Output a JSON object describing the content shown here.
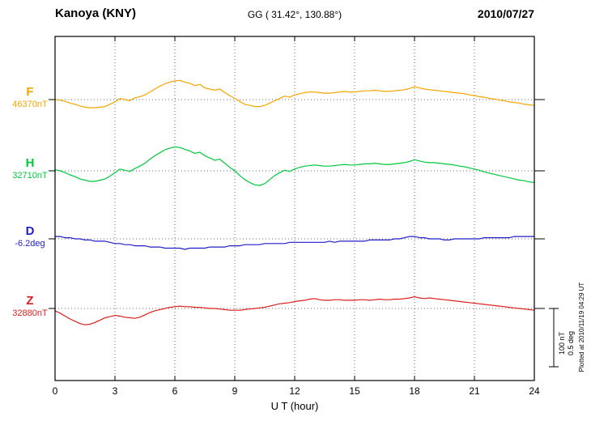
{
  "header": {
    "station": "Kanoya (KNY)",
    "coords": "GG ( 31.42°, 130.88°)",
    "date": "2010/07/27"
  },
  "footer_note": "Plotted at 2010/11/19 04:29 UT",
  "chart_data": {
    "type": "line",
    "title": "Kanoya (KNY) magnetogram 2010/07/27",
    "xlabel": "U T (hour)",
    "x_range": [
      0,
      24
    ],
    "x_ticks": [
      0,
      3,
      6,
      9,
      12,
      15,
      18,
      21,
      24
    ],
    "grid": "dotted vertical at 3h intervals, dotted horizontal baselines per trace",
    "sample_interval_hours": 0.25,
    "scale_bar": {
      "nT_label": "100 nT",
      "deg_label": "0.5 deg",
      "nT": 100,
      "deg": 0.5
    },
    "series": [
      {
        "name": "F",
        "baseline_label": "46370nT",
        "baseline_value": 46370,
        "unit": "nT",
        "color": "#F5A500",
        "values": [
          0,
          -1,
          -3,
          -6,
          -8,
          -11,
          -13,
          -14,
          -14,
          -13,
          -12,
          -8,
          -4,
          2,
          0,
          -2,
          3,
          5,
          8,
          13,
          18,
          23,
          27,
          30,
          32,
          33,
          30,
          28,
          24,
          26,
          20,
          18,
          16,
          18,
          12,
          7,
          2,
          -3,
          -8,
          -10,
          -12,
          -12,
          -10,
          -6,
          -2,
          2,
          6,
          4,
          8,
          10,
          12,
          13,
          13,
          12,
          11,
          11,
          12,
          13,
          14,
          13,
          13,
          14,
          15,
          15,
          16,
          15,
          14,
          14,
          15,
          16,
          17,
          19,
          22,
          20,
          18,
          17,
          16,
          15,
          14,
          13,
          12,
          11,
          10,
          8,
          7,
          5,
          4,
          2,
          1,
          -1,
          -2,
          -4,
          -5,
          -6,
          -8,
          -9,
          -10
        ]
      },
      {
        "name": "H",
        "baseline_label": "32710nT",
        "baseline_value": 32710,
        "unit": "nT",
        "color": "#00C83C",
        "values": [
          2,
          0,
          -3,
          -7,
          -10,
          -14,
          -16,
          -18,
          -18,
          -16,
          -14,
          -9,
          -3,
          3,
          1,
          -1,
          4,
          8,
          13,
          20,
          26,
          31,
          36,
          39,
          41,
          40,
          37,
          34,
          30,
          32,
          26,
          22,
          18,
          20,
          13,
          6,
          0,
          -8,
          -15,
          -20,
          -24,
          -25,
          -22,
          -15,
          -8,
          -3,
          1,
          -1,
          3,
          6,
          8,
          9,
          10,
          9,
          8,
          8,
          9,
          10,
          11,
          10,
          10,
          11,
          12,
          12,
          13,
          12,
          11,
          11,
          12,
          13,
          14,
          16,
          19,
          17,
          15,
          14,
          14,
          13,
          12,
          11,
          10,
          8,
          7,
          5,
          3,
          1,
          -2,
          -4,
          -6,
          -8,
          -10,
          -12,
          -14,
          -16,
          -17,
          -19,
          -20
        ]
      },
      {
        "name": "D",
        "baseline_label": "-6.2deg",
        "baseline_value": -6.2,
        "unit": "deg",
        "color": "#1E1EC8",
        "values": [
          0.02,
          0.02,
          0.01,
          0.01,
          0,
          0,
          -0.01,
          -0.01,
          -0.02,
          -0.02,
          -0.02,
          -0.03,
          -0.04,
          -0.04,
          -0.05,
          -0.05,
          -0.06,
          -0.06,
          -0.06,
          -0.07,
          -0.07,
          -0.07,
          -0.08,
          -0.08,
          -0.08,
          -0.08,
          -0.09,
          -0.08,
          -0.08,
          -0.08,
          -0.08,
          -0.07,
          -0.07,
          -0.07,
          -0.07,
          -0.06,
          -0.06,
          -0.06,
          -0.05,
          -0.05,
          -0.05,
          -0.05,
          -0.04,
          -0.04,
          -0.04,
          -0.04,
          -0.04,
          -0.03,
          -0.03,
          -0.03,
          -0.03,
          -0.03,
          -0.03,
          -0.03,
          -0.03,
          -0.02,
          -0.03,
          -0.02,
          -0.02,
          -0.02,
          -0.02,
          -0.02,
          -0.02,
          -0.01,
          -0.01,
          -0.01,
          -0.01,
          -0.01,
          0,
          0,
          0.01,
          0.02,
          0.02,
          0.01,
          0.01,
          0,
          0,
          0,
          -0.01,
          -0.01,
          0,
          0,
          0,
          0,
          0,
          0,
          0.01,
          0.01,
          0.01,
          0.01,
          0.01,
          0.01,
          0.02,
          0.02,
          0.02,
          0.02,
          0.02
        ]
      },
      {
        "name": "Z",
        "baseline_label": "32880nT",
        "baseline_value": 32880,
        "unit": "nT",
        "color": "#DC1E1E",
        "values": [
          -4,
          -8,
          -13,
          -18,
          -22,
          -26,
          -28,
          -27,
          -24,
          -20,
          -16,
          -14,
          -12,
          -13,
          -15,
          -16,
          -17,
          -15,
          -11,
          -7,
          -4,
          -2,
          0,
          2,
          3,
          4,
          3,
          3,
          2,
          2,
          1,
          0,
          0,
          -1,
          -2,
          -3,
          -3,
          -3,
          -2,
          -1,
          0,
          1,
          2,
          4,
          6,
          8,
          9,
          10,
          12,
          13,
          14,
          16,
          17,
          15,
          14,
          14,
          15,
          15,
          14,
          14,
          14,
          15,
          15,
          14,
          15,
          16,
          15,
          15,
          16,
          16,
          17,
          18,
          20,
          18,
          17,
          18,
          17,
          16,
          15,
          14,
          13,
          12,
          11,
          10,
          9,
          8,
          7,
          6,
          5,
          4,
          3,
          2,
          1,
          0,
          -1,
          -2,
          -3
        ]
      }
    ]
  }
}
